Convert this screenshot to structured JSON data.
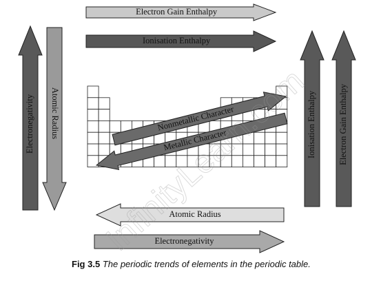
{
  "arrows": [
    {
      "label": "Electron Gain Enthalpy"
    },
    {
      "label": "Ionisation Enthalpy"
    },
    {
      "label": "Electronegativity"
    },
    {
      "label": "Atomic Radius"
    },
    {
      "label": "Ionisation Enthalpy"
    },
    {
      "label": "Electron Gain Enthalpy"
    },
    {
      "label": "Nonmetallic Character"
    },
    {
      "label": "Metallic Character"
    },
    {
      "label": "Atomic Radius"
    },
    {
      "label": "Electronegativity"
    }
  ],
  "caption": {
    "number": "Fig 3.5",
    "text": "The periodic trends of elements in the periodic table."
  },
  "watermark": "InfinityLearn.com"
}
